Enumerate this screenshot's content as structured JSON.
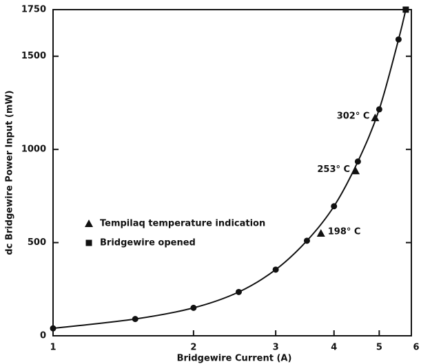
{
  "chart_data": {
    "type": "scatter",
    "x_label": "Bridgewire Current (A)",
    "y_label": "dc Bridgewire Power Input (mW)",
    "xscale": "log",
    "xlim": [
      1,
      6
    ],
    "xticks": [
      1,
      2,
      3,
      4,
      5,
      6
    ],
    "ylim": [
      0,
      1750
    ],
    "yticks": [
      0,
      500,
      1000,
      1500,
      1750
    ],
    "series": [
      {
        "marker": "circle",
        "color": "#111111",
        "x": [
          1.0,
          1.5,
          2.0,
          2.5,
          3.0,
          3.5,
          4.0,
          4.5,
          5.0,
          5.5
        ],
        "values": [
          40,
          90,
          150,
          235,
          355,
          510,
          695,
          935,
          1215,
          1590
        ]
      },
      {
        "name": "Tempilaq temperature indication",
        "marker": "triangle",
        "color": "#111111",
        "x": [
          3.75,
          4.45,
          4.9
        ],
        "values": [
          550,
          885,
          1170
        ],
        "labels": [
          "198° C",
          "253° C",
          "302° C"
        ]
      },
      {
        "name": "Bridgewire opened",
        "marker": "square",
        "color": "#111111",
        "x": [
          5.7
        ],
        "values": [
          1750
        ]
      }
    ]
  }
}
